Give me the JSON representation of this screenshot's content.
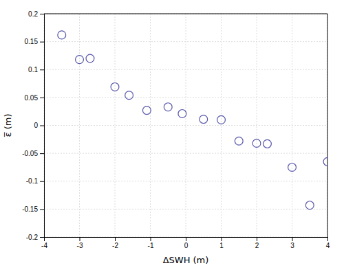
{
  "chart_data": {
    "type": "scatter",
    "x": [
      -3.5,
      -3.0,
      -2.7,
      -2.0,
      -1.6,
      -1.1,
      -0.5,
      -0.1,
      0.5,
      1.0,
      1.5,
      2.0,
      2.3,
      3.0,
      3.5,
      4.0
    ],
    "y": [
      0.162,
      0.118,
      0.12,
      0.069,
      0.054,
      0.027,
      0.033,
      0.021,
      0.011,
      0.01,
      -0.028,
      -0.032,
      -0.033,
      -0.075,
      -0.143,
      -0.065
    ],
    "xlabel": "ΔSWH (m)",
    "ylabel": "ε̅ (m)",
    "xlim": [
      -4,
      4
    ],
    "ylim": [
      -0.2,
      0.2
    ],
    "xticks": [
      -4,
      -3,
      -2,
      -1,
      0,
      1,
      2,
      3,
      4
    ],
    "yticks": [
      -0.2,
      -0.15,
      -0.1,
      -0.05,
      0,
      0.05,
      0.1,
      0.15,
      0.2
    ],
    "color": "#5555aa",
    "marker": "circle",
    "grid": true
  }
}
